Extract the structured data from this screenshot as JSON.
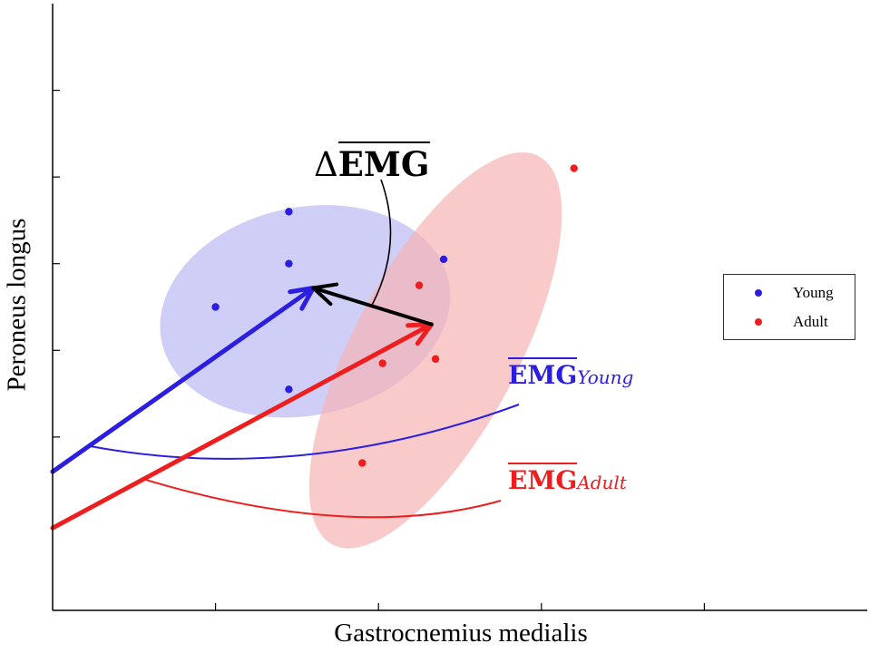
{
  "chart_data": {
    "type": "scatter",
    "title": "",
    "xlabel": "Gastrocnemius medialis",
    "ylabel": "Peroneus longus",
    "xlim": [
      0,
      10
    ],
    "ylim": [
      0,
      7
    ],
    "xticks": [
      2,
      4,
      6,
      8
    ],
    "yticks": [
      2,
      3,
      4,
      5,
      6
    ],
    "grid": false,
    "legend_position": "right",
    "series": [
      {
        "name": "Young",
        "color": "#2b1ee0",
        "points": [
          [
            2.0,
            3.5
          ],
          [
            2.9,
            4.6
          ],
          [
            2.9,
            4.0
          ],
          [
            4.8,
            4.05
          ],
          [
            2.9,
            2.55
          ]
        ],
        "ellipse": {
          "center": [
            3.1,
            3.45
          ],
          "rx": 1.8,
          "ry": 1.2,
          "angle_deg": 12,
          "fill": "#b9b9f4"
        },
        "mean_vector": {
          "from": [
            0,
            1.6
          ],
          "to": [
            3.2,
            3.72
          ]
        }
      },
      {
        "name": "Adult",
        "color": "#ee1e1e",
        "points": [
          [
            6.4,
            5.1
          ],
          [
            4.5,
            3.75
          ],
          [
            4.05,
            2.85
          ],
          [
            4.7,
            2.9
          ],
          [
            3.8,
            1.7
          ]
        ],
        "ellipse": {
          "center": [
            4.7,
            3.0
          ],
          "rx": 2.7,
          "ry": 0.95,
          "angle_deg": 62,
          "fill": "#f7b4b4"
        },
        "mean_vector": {
          "from": [
            0,
            0.95
          ],
          "to": [
            4.65,
            3.3
          ]
        }
      }
    ],
    "difference_vector": {
      "from": [
        4.65,
        3.3
      ],
      "to": [
        3.2,
        3.72
      ],
      "color": "#000000"
    },
    "annotations": {
      "delta": {
        "prefix": "Δ",
        "main": "EMG",
        "color": "#000000"
      },
      "young": {
        "main": "EMG",
        "sub": "Young",
        "color": "#2b1ee0"
      },
      "adult": {
        "main": "EMG",
        "sub": "Adult",
        "color": "#ee1e1e"
      }
    }
  }
}
